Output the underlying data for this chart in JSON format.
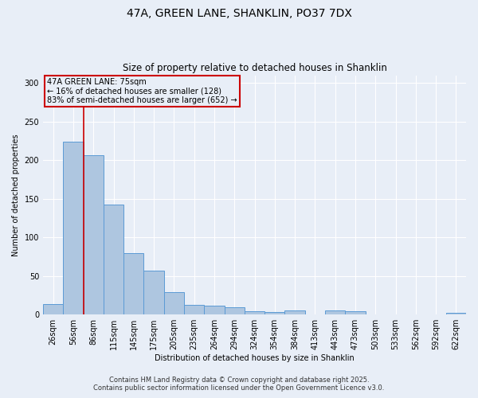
{
  "title1": "47A, GREEN LANE, SHANKLIN, PO37 7DX",
  "title2": "Size of property relative to detached houses in Shanklin",
  "xlabel": "Distribution of detached houses by size in Shanklin",
  "ylabel": "Number of detached properties",
  "categories": [
    "26sqm",
    "56sqm",
    "86sqm",
    "115sqm",
    "145sqm",
    "175sqm",
    "205sqm",
    "235sqm",
    "264sqm",
    "294sqm",
    "324sqm",
    "354sqm",
    "384sqm",
    "413sqm",
    "443sqm",
    "473sqm",
    "503sqm",
    "533sqm",
    "562sqm",
    "592sqm",
    "622sqm"
  ],
  "values": [
    14,
    224,
    206,
    142,
    80,
    57,
    29,
    13,
    12,
    9,
    4,
    3,
    5,
    0,
    5,
    4,
    0,
    0,
    0,
    0,
    2
  ],
  "bar_color": "#aec6e0",
  "bar_edge_color": "#5b9bd5",
  "vline_color": "#cc0000",
  "annotation_box_color": "#cc0000",
  "annotation_title": "47A GREEN LANE: 75sqm",
  "annotation_line1": "← 16% of detached houses are smaller (128)",
  "annotation_line2": "83% of semi-detached houses are larger (652) →",
  "ylim": [
    0,
    310
  ],
  "yticks": [
    0,
    50,
    100,
    150,
    200,
    250,
    300
  ],
  "footer1": "Contains HM Land Registry data © Crown copyright and database right 2025.",
  "footer2": "Contains public sector information licensed under the Open Government Licence v3.0.",
  "bg_color": "#e8eef7",
  "title1_fontsize": 10,
  "title2_fontsize": 8.5,
  "axis_fontsize": 7,
  "tick_fontsize": 7,
  "footer_fontsize": 6,
  "ann_fontsize": 7
}
